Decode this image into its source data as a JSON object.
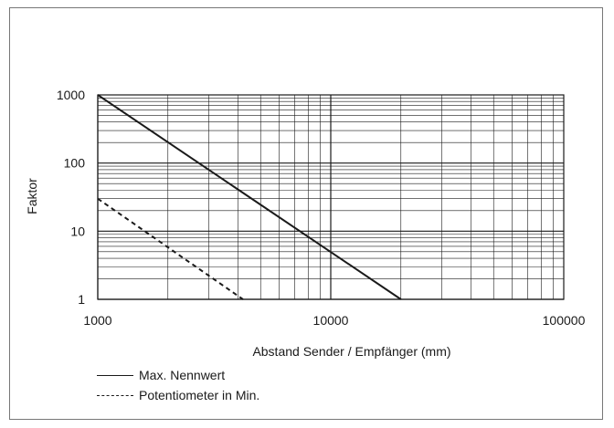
{
  "chart_data": {
    "type": "line",
    "title": "",
    "xlabel": "Abstand Sender / Empfänger (mm)",
    "ylabel": "Faktor",
    "x_scale": "log",
    "y_scale": "log",
    "xlim": [
      1000,
      100000
    ],
    "ylim": [
      1,
      1000
    ],
    "x_ticks": [
      1000,
      10000,
      100000
    ],
    "x_tick_labels": [
      "1000",
      "10000",
      "100000"
    ],
    "y_ticks": [
      1,
      10,
      100,
      1000
    ],
    "y_tick_labels": [
      "1",
      "10",
      "100",
      "1000"
    ],
    "grid": true,
    "legend_position": "bottom-left",
    "series": [
      {
        "name": "Max. Nennwert",
        "style": "solid",
        "x": [
          1000,
          20000
        ],
        "y": [
          1000,
          1
        ]
      },
      {
        "name": "Potentiometer in Min.",
        "style": "dashed",
        "x": [
          1000,
          4200
        ],
        "y": [
          30,
          1
        ]
      }
    ]
  },
  "colors": {
    "line": "#1a1a1a",
    "grid": "#1a1a1a",
    "frame": "#777777"
  }
}
